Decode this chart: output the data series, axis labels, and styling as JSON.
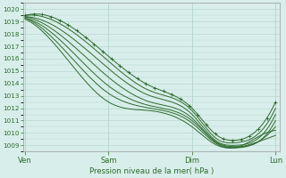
{
  "xlabel": "Pression niveau de la mer( hPa )",
  "ylim": [
    1008.5,
    1020.5
  ],
  "yticks": [
    1009,
    1010,
    1011,
    1012,
    1013,
    1014,
    1015,
    1016,
    1017,
    1018,
    1019,
    1020
  ],
  "xtick_labels": [
    "Ven",
    "Sam",
    "Dim",
    "Lun"
  ],
  "xtick_positions": [
    0,
    1,
    2,
    3
  ],
  "bg_color": "#d8eeea",
  "grid_color": "#b8d8d0",
  "line_color": "#2d6a2d",
  "marker_color": "#2d6a2d",
  "lines": [
    {
      "pts": [
        [
          0,
          1019.5
        ],
        [
          0.5,
          1018.8
        ],
        [
          1.0,
          1016.2
        ],
        [
          1.5,
          1013.8
        ],
        [
          2.0,
          1012.0
        ],
        [
          2.3,
          1009.8
        ],
        [
          2.5,
          1009.4
        ],
        [
          2.7,
          1009.8
        ],
        [
          3.0,
          1012.5
        ]
      ],
      "markers": true
    },
    {
      "pts": [
        [
          0,
          1019.5
        ],
        [
          0.5,
          1018.5
        ],
        [
          1.0,
          1015.8
        ],
        [
          1.5,
          1013.4
        ],
        [
          2.0,
          1011.8
        ],
        [
          2.3,
          1009.5
        ],
        [
          2.5,
          1009.2
        ],
        [
          2.7,
          1009.5
        ],
        [
          3.0,
          1012.0
        ]
      ],
      "markers": false
    },
    {
      "pts": [
        [
          0,
          1019.4
        ],
        [
          0.5,
          1018.0
        ],
        [
          1.0,
          1015.2
        ],
        [
          1.5,
          1013.0
        ],
        [
          2.0,
          1011.5
        ],
        [
          2.3,
          1009.3
        ],
        [
          2.5,
          1009.0
        ],
        [
          2.7,
          1009.2
        ],
        [
          3.0,
          1011.5
        ]
      ],
      "markers": false
    },
    {
      "pts": [
        [
          0,
          1019.4
        ],
        [
          0.5,
          1017.5
        ],
        [
          1.0,
          1014.5
        ],
        [
          1.5,
          1012.5
        ],
        [
          2.0,
          1011.2
        ],
        [
          2.3,
          1009.2
        ],
        [
          2.5,
          1008.9
        ],
        [
          2.7,
          1009.0
        ],
        [
          3.0,
          1011.0
        ]
      ],
      "markers": false
    },
    {
      "pts": [
        [
          0,
          1019.3
        ],
        [
          0.5,
          1017.0
        ],
        [
          1.0,
          1013.8
        ],
        [
          1.5,
          1012.2
        ],
        [
          2.0,
          1011.0
        ],
        [
          2.3,
          1009.2
        ],
        [
          2.5,
          1008.8
        ],
        [
          2.7,
          1009.0
        ],
        [
          3.0,
          1010.5
        ]
      ],
      "markers": false
    },
    {
      "pts": [
        [
          0,
          1019.3
        ],
        [
          0.5,
          1016.5
        ],
        [
          1.0,
          1013.2
        ],
        [
          1.5,
          1012.0
        ],
        [
          2.0,
          1010.8
        ],
        [
          2.3,
          1009.1
        ],
        [
          2.5,
          1008.8
        ],
        [
          2.6,
          1009.0
        ],
        [
          3.0,
          1010.2
        ]
      ],
      "markers": false
    },
    {
      "pts": [
        [
          0,
          1019.2
        ],
        [
          0.5,
          1016.0
        ],
        [
          1.0,
          1012.5
        ],
        [
          1.5,
          1011.8
        ],
        [
          2.0,
          1010.5
        ],
        [
          2.3,
          1009.0
        ],
        [
          2.5,
          1008.8
        ],
        [
          2.6,
          1008.9
        ],
        [
          3.0,
          1009.8
        ]
      ],
      "markers": false
    }
  ]
}
